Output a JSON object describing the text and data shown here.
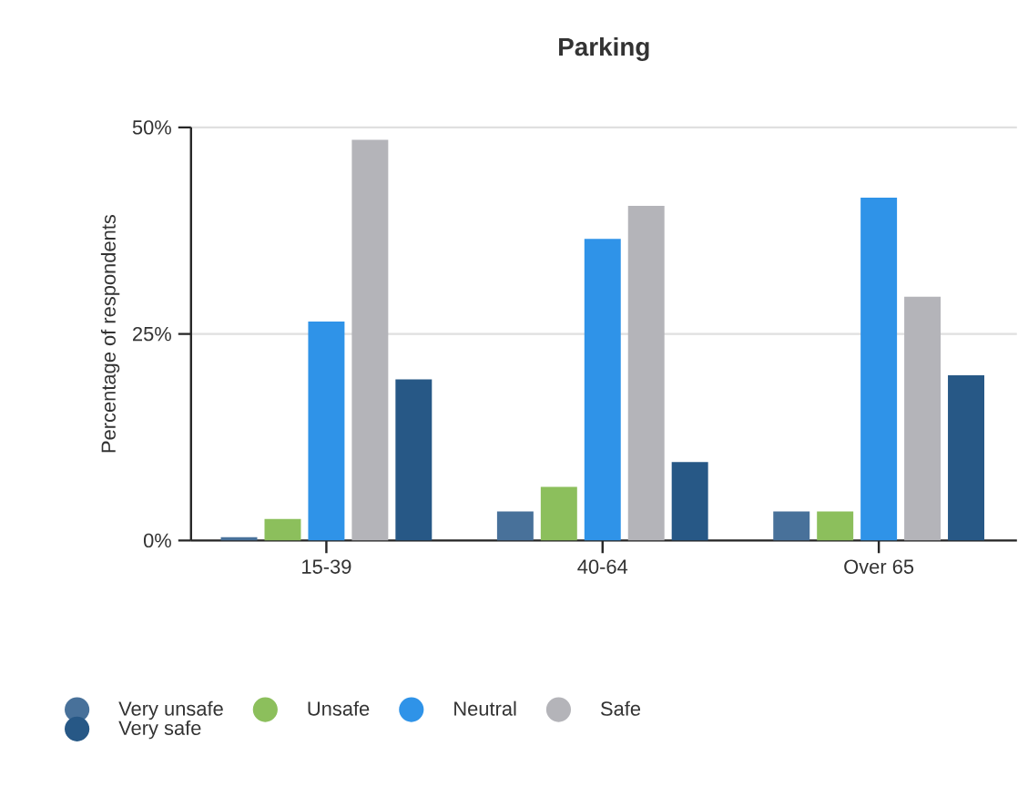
{
  "chart_data": {
    "type": "bar",
    "title": "Parking",
    "ylabel": "Percentage of respondents",
    "categories": [
      "15-39",
      "40-64",
      "Over 65"
    ],
    "series": [
      {
        "name": "Very unsafe",
        "color": "#48719a",
        "values": [
          0.4,
          3.5,
          3.5
        ]
      },
      {
        "name": "Unsafe",
        "color": "#8cbf5c",
        "values": [
          2.6,
          6.5,
          3.5
        ]
      },
      {
        "name": "Neutral",
        "color": "#2f93e8",
        "values": [
          26.5,
          36.5,
          41.5
        ]
      },
      {
        "name": "Safe",
        "color": "#b4b4b9",
        "values": [
          48.5,
          40.5,
          29.5
        ]
      },
      {
        "name": "Very safe",
        "color": "#275886",
        "values": [
          19.5,
          9.5,
          20
        ]
      }
    ],
    "ylim": [
      0,
      50
    ],
    "yticks": [
      {
        "value": 0,
        "label": "0%"
      },
      {
        "value": 25,
        "label": "25%"
      },
      {
        "value": 50,
        "label": "50%"
      }
    ],
    "grid": "y",
    "legend": "bottom"
  }
}
